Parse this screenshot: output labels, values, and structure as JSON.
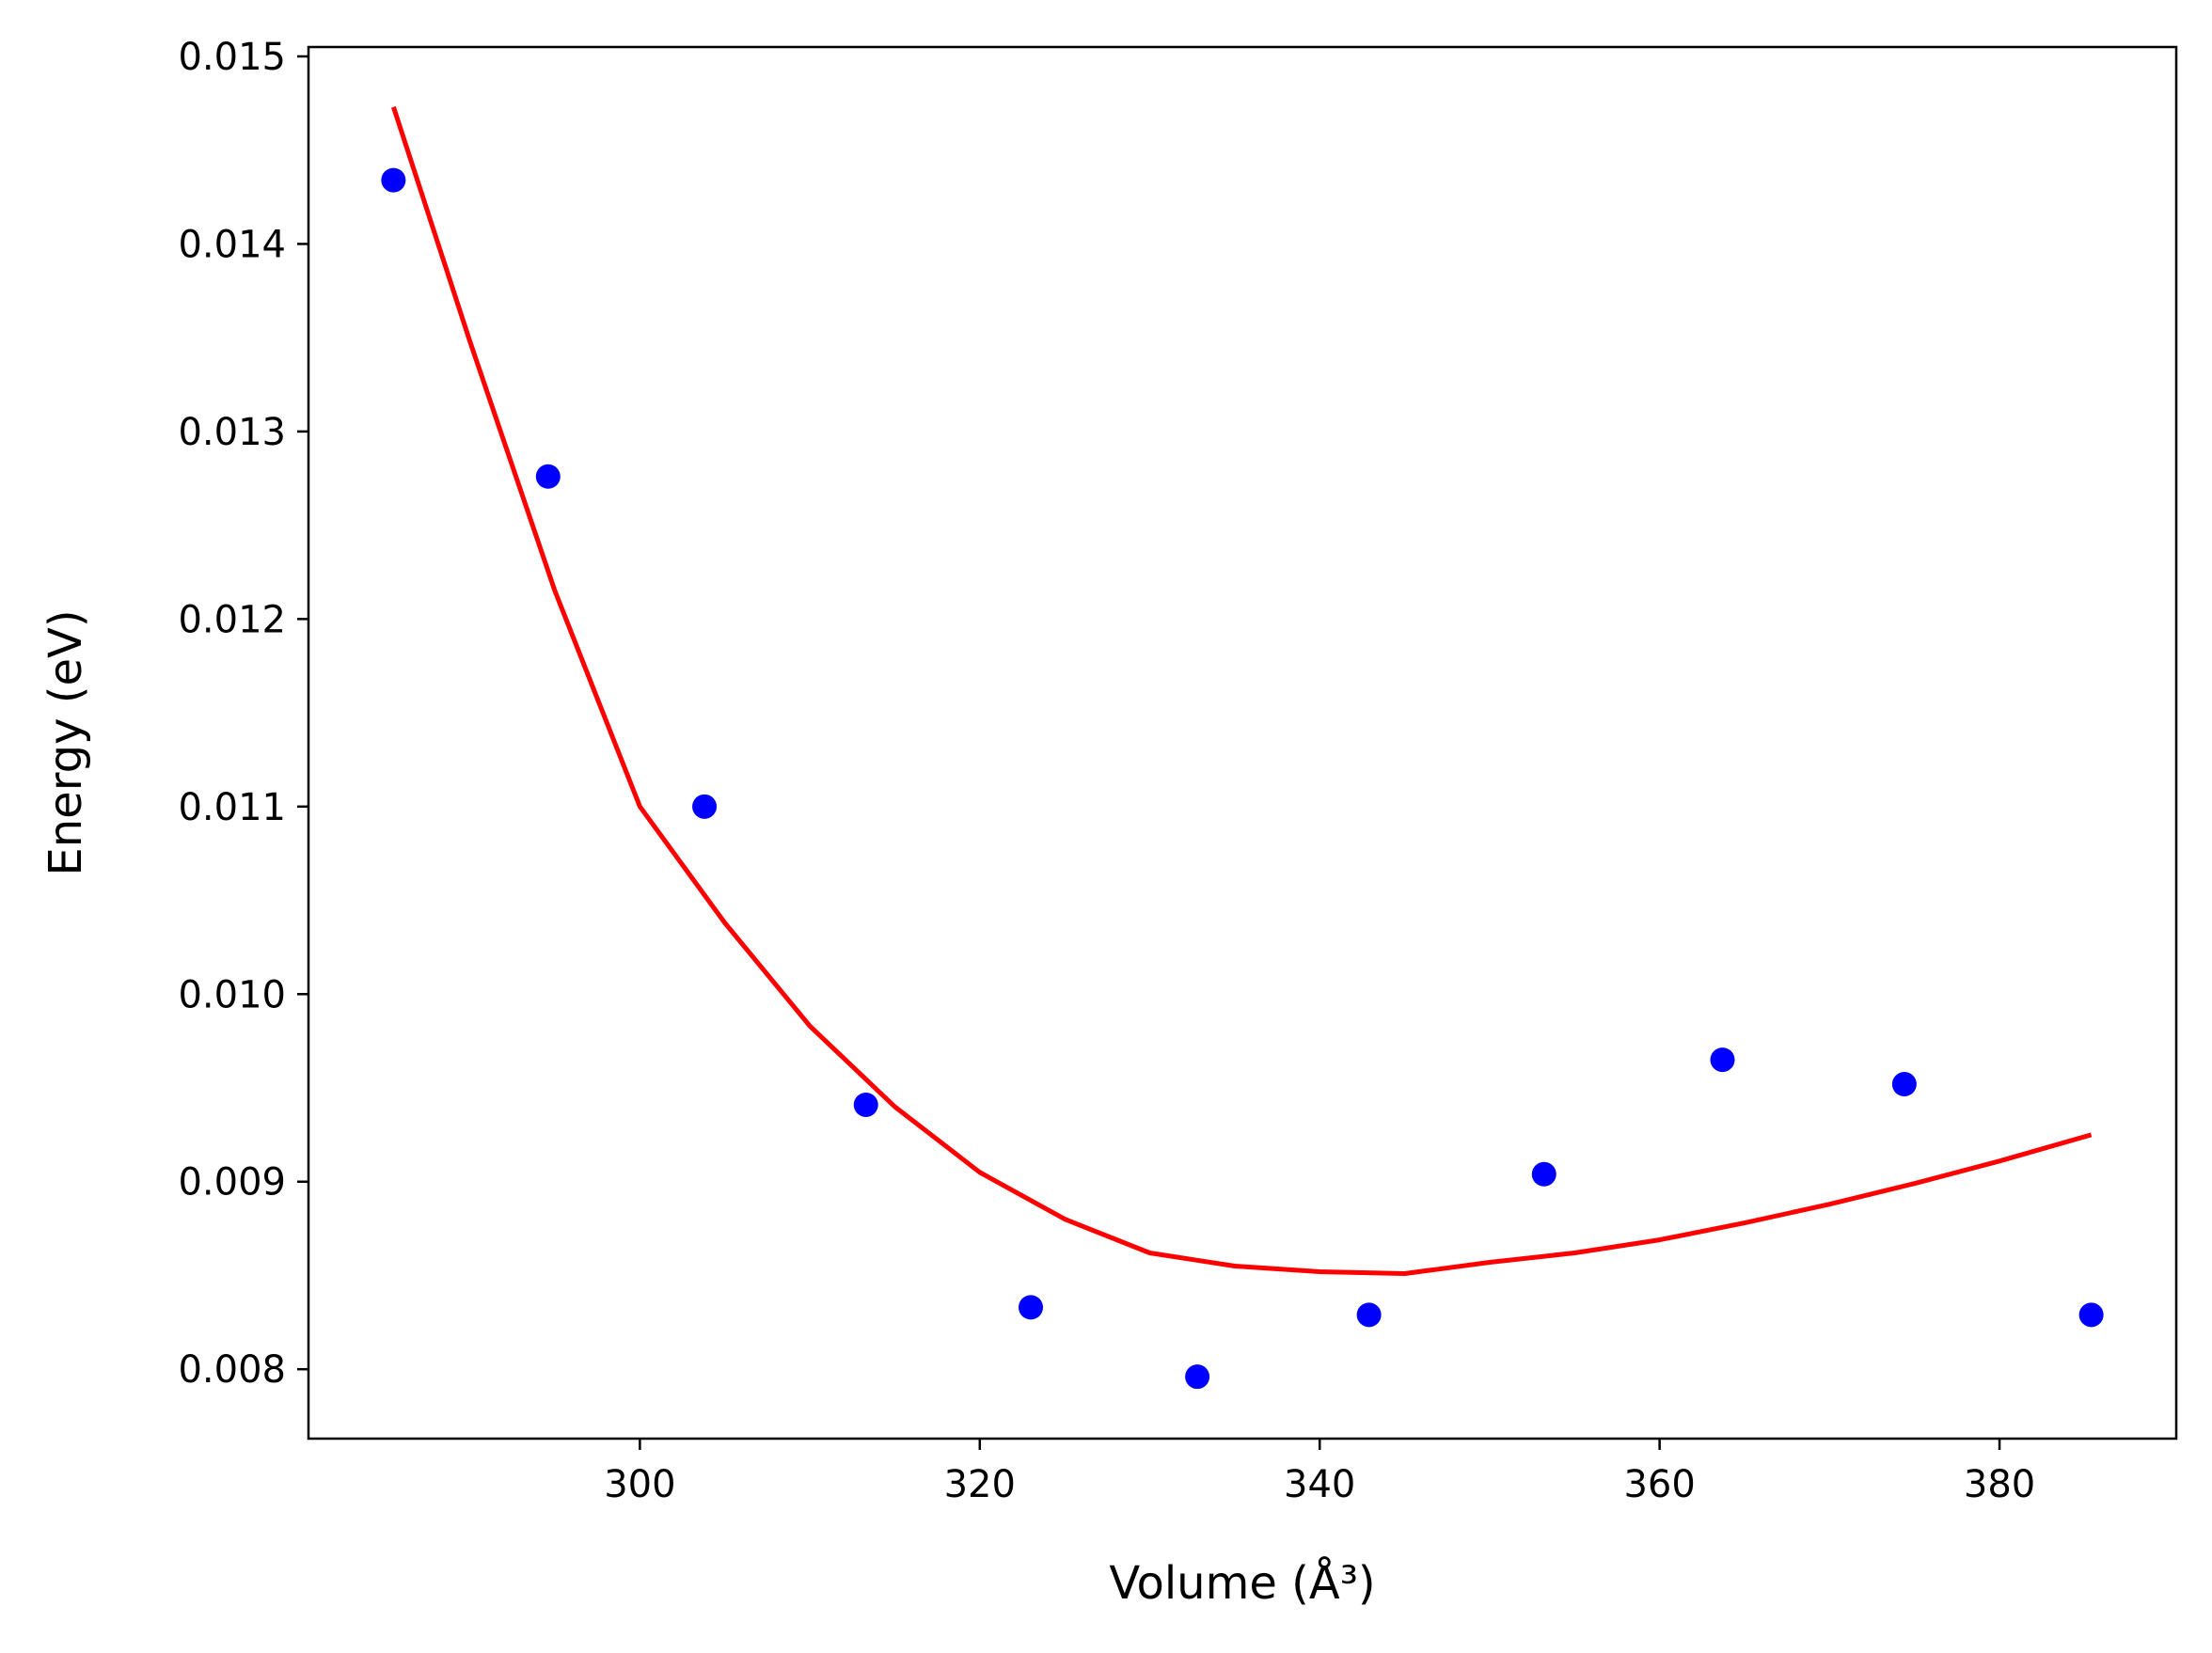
{
  "chart_data": {
    "type": "scatter",
    "title": "",
    "xlabel": "Volume (Å³)",
    "ylabel": "Energy (eV)",
    "xlim": [
      280.5,
      390.4
    ],
    "ylim": [
      0.00763,
      0.01505
    ],
    "xticks": [
      300,
      320,
      340,
      360,
      380
    ],
    "yticks": [
      0.008,
      0.009,
      0.01,
      0.011,
      0.012,
      0.013,
      0.014,
      0.015
    ],
    "xtick_labels": [
      "300",
      "320",
      "340",
      "360",
      "380"
    ],
    "ytick_labels": [
      "0.008",
      "0.009",
      "0.010",
      "0.011",
      "0.012",
      "0.013",
      "0.014",
      "0.015"
    ],
    "grid": false,
    "series": [
      {
        "kind": "scatter",
        "color": "#0000ff",
        "x": [
          285.5,
          294.6,
          303.8,
          313.3,
          323.0,
          332.8,
          342.9,
          353.2,
          363.7,
          374.4,
          385.4
        ],
        "y": [
          0.01434,
          0.01276,
          0.011,
          0.00941,
          0.00833,
          0.00796,
          0.00829,
          0.00904,
          0.00965,
          0.00952,
          0.00829
        ]
      },
      {
        "kind": "line",
        "color": "#ff0000",
        "x": [
          285.5,
          290,
          295,
          300,
          305,
          310,
          315,
          320,
          325,
          330,
          335,
          340,
          345,
          350,
          355,
          360,
          365,
          370,
          375,
          380,
          385.4
        ],
        "y": [
          0.01473,
          0.01348,
          0.01215,
          0.011,
          0.01038,
          0.00983,
          0.0094,
          0.00905,
          0.0088,
          0.00862,
          0.00855,
          0.00852,
          0.00851,
          0.00857,
          0.00862,
          0.00869,
          0.00878,
          0.00888,
          0.00899,
          0.00911,
          0.00925
        ]
      }
    ]
  }
}
